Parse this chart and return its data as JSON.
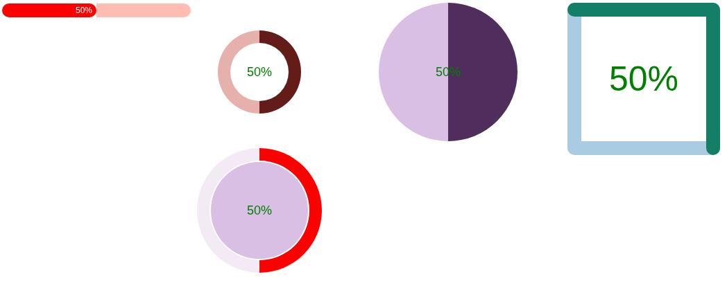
{
  "chart_data": [
    {
      "type": "bar",
      "orientation": "horizontal",
      "stacked": true,
      "categories": [
        null
      ],
      "series": [
        {
          "color": "#ff0000",
          "values": [
            50
          ],
          "value_labels": [
            "50%"
          ]
        },
        {
          "color": "#ffbcb3",
          "values": [
            50
          ]
        }
      ]
    },
    {
      "type": "donut",
      "categories": [
        null,
        null
      ],
      "values": [
        50,
        50
      ],
      "colors": [
        "#631c17",
        "#e6b1ad"
      ],
      "annotations": [
        "50%"
      ]
    },
    {
      "type": "pie",
      "categories": [
        null,
        null
      ],
      "values": [
        50,
        50
      ],
      "colors": [
        "#4f2d5c",
        "#d8bfe3"
      ],
      "annotations": [
        "50%"
      ]
    },
    {
      "type": "other",
      "colors": [
        "#137f67",
        "#a9cce3"
      ],
      "annotations": [
        "50%"
      ]
    },
    {
      "type": "donut",
      "categories": [
        null,
        null
      ],
      "values": [
        50,
        50
      ],
      "colors": [
        "#ff0000",
        "#f3eaf5"
      ],
      "annotations": [
        "50%"
      ]
    }
  ]
}
